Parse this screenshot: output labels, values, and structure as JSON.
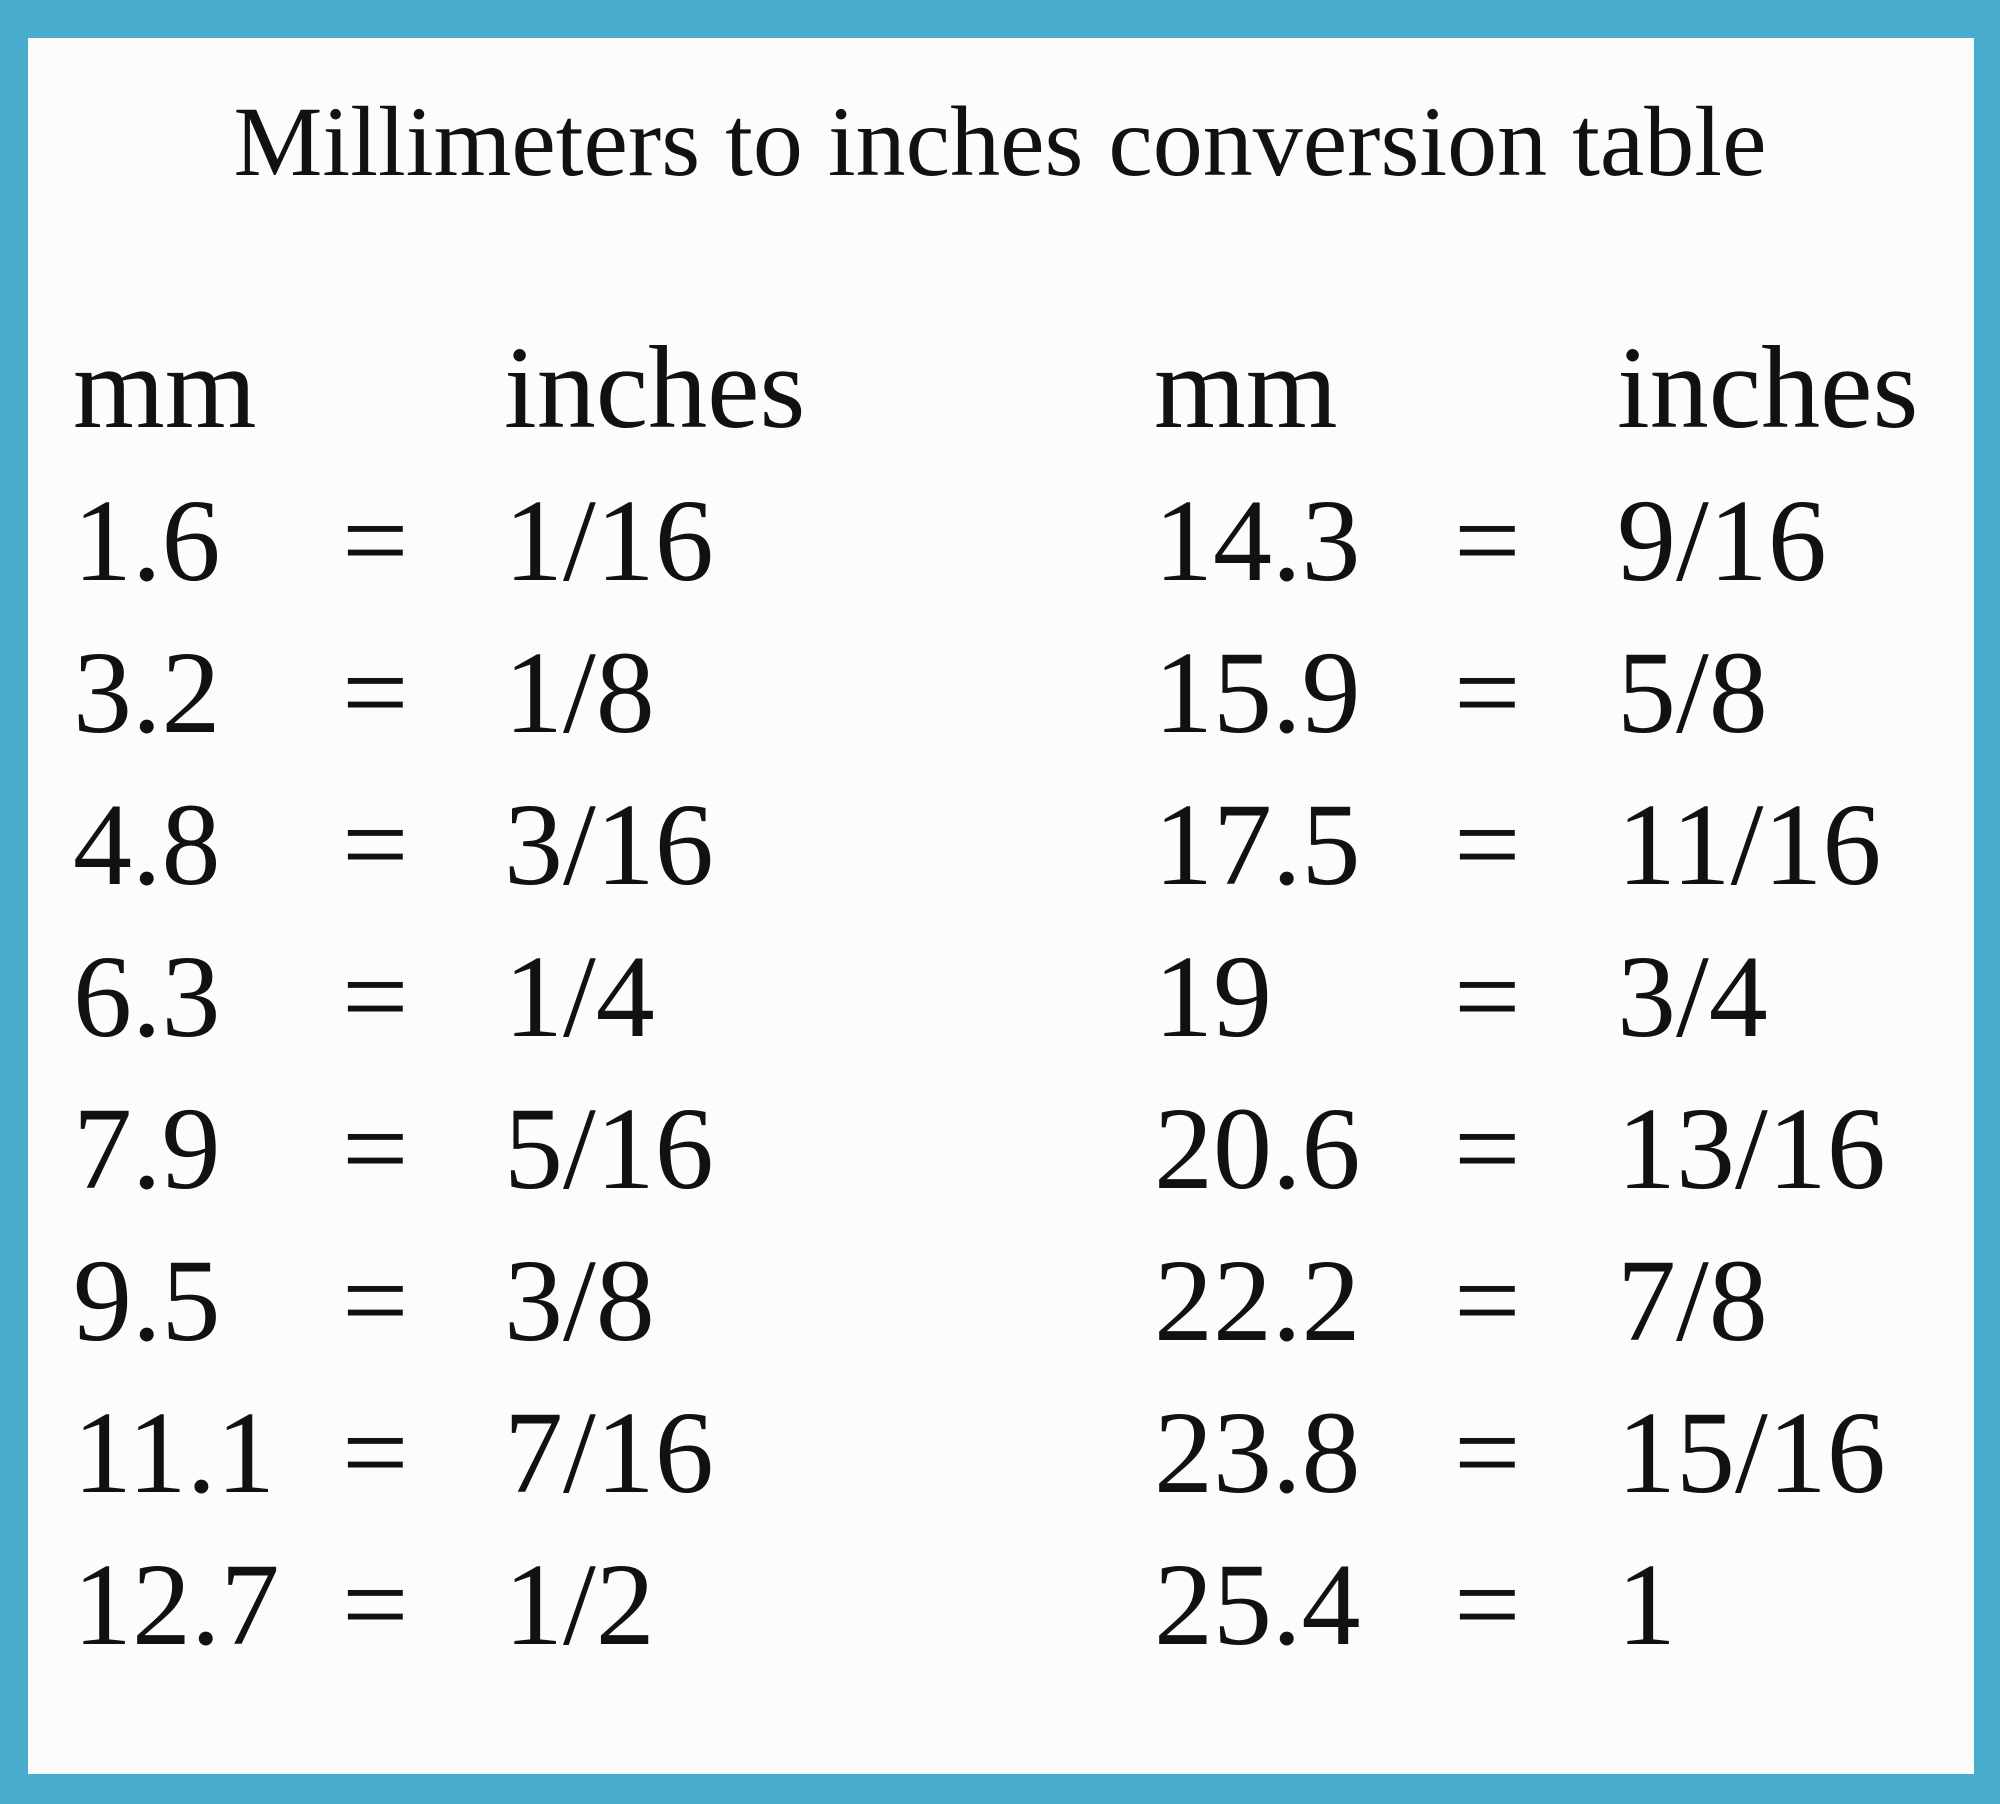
{
  "title": "Millimeters to inches conversion table",
  "equals": "=",
  "tables": [
    {
      "header": [
        "mm",
        "inches"
      ],
      "rows": [
        [
          1.6,
          "1/16"
        ],
        [
          3.2,
          "1/8"
        ],
        [
          4.8,
          "3/16"
        ],
        [
          6.3,
          "1/4"
        ],
        [
          7.9,
          "5/16"
        ],
        [
          9.5,
          "3/8"
        ],
        [
          11.1,
          "7/16"
        ],
        [
          12.7,
          "1/2"
        ]
      ]
    },
    {
      "header": [
        "mm",
        "inches"
      ],
      "rows": [
        [
          14.3,
          "9/16"
        ],
        [
          15.9,
          "5/8"
        ],
        [
          17.5,
          "11/16"
        ],
        [
          19,
          "3/4"
        ],
        [
          20.6,
          "13/16"
        ],
        [
          22.2,
          "7/8"
        ],
        [
          23.8,
          "15/16"
        ],
        [
          25.4,
          "1"
        ]
      ]
    }
  ]
}
